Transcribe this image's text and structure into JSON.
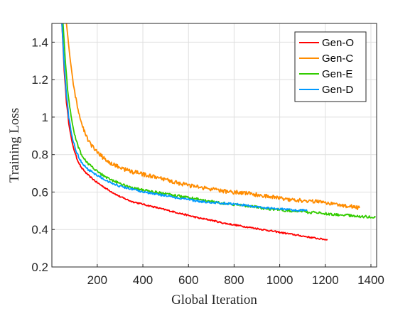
{
  "chart_data": {
    "type": "line",
    "title": "",
    "xlabel": "Global Iteration",
    "ylabel": "Training Loss",
    "xlim": [
      1,
      1425
    ],
    "ylim": [
      0.2,
      1.5
    ],
    "xticks": [
      200,
      400,
      600,
      800,
      1000,
      1200,
      1400
    ],
    "xtick_labels": [
      "200",
      "400",
      "600",
      "800",
      "1000",
      "1200",
      "1400"
    ],
    "yticks": [
      0.2,
      0.4,
      0.6,
      0.8,
      1.0,
      1.2,
      1.4
    ],
    "ytick_labels": [
      "0.2",
      "0.4",
      "0.6",
      "0.8",
      "1",
      "1.2",
      "1.4"
    ],
    "grid": true,
    "legend_position": "top-right",
    "series": [
      {
        "name": "Gen-O",
        "color": "#ff0000",
        "x": [
          45,
          55,
          65,
          75,
          90,
          110,
          130,
          160,
          200,
          250,
          300,
          350,
          400,
          450,
          500,
          550,
          600,
          650,
          700,
          750,
          800,
          850,
          900,
          950,
          1000,
          1050,
          1100,
          1150,
          1210
        ],
        "y": [
          1.5,
          1.25,
          1.08,
          0.97,
          0.86,
          0.78,
          0.73,
          0.69,
          0.65,
          0.61,
          0.575,
          0.55,
          0.535,
          0.52,
          0.505,
          0.49,
          0.475,
          0.46,
          0.45,
          0.435,
          0.425,
          0.415,
          0.405,
          0.395,
          0.385,
          0.375,
          0.365,
          0.355,
          0.345
        ],
        "noise": 0.004
      },
      {
        "name": "Gen-C",
        "color": "#ff8c00",
        "x": [
          65,
          80,
          95,
          110,
          130,
          150,
          175,
          200,
          250,
          300,
          350,
          400,
          450,
          500,
          550,
          600,
          650,
          700,
          750,
          800,
          850,
          900,
          950,
          1000,
          1050,
          1100,
          1150,
          1200,
          1250,
          1300,
          1350
        ],
        "y": [
          1.5,
          1.32,
          1.18,
          1.07,
          0.97,
          0.9,
          0.85,
          0.81,
          0.76,
          0.73,
          0.71,
          0.695,
          0.68,
          0.665,
          0.65,
          0.635,
          0.625,
          0.615,
          0.605,
          0.6,
          0.595,
          0.585,
          0.575,
          0.57,
          0.56,
          0.555,
          0.55,
          0.545,
          0.535,
          0.525,
          0.515
        ],
        "noise": 0.011
      },
      {
        "name": "Gen-E",
        "color": "#33cc00",
        "x": [
          50,
          60,
          70,
          85,
          100,
          120,
          140,
          170,
          200,
          250,
          300,
          350,
          400,
          450,
          500,
          550,
          600,
          650,
          700,
          750,
          800,
          850,
          900,
          950,
          1000,
          1050,
          1100,
          1150,
          1200,
          1250,
          1300,
          1350,
          1420
        ],
        "y": [
          1.5,
          1.3,
          1.15,
          1.0,
          0.91,
          0.83,
          0.78,
          0.74,
          0.71,
          0.67,
          0.645,
          0.625,
          0.61,
          0.6,
          0.59,
          0.58,
          0.57,
          0.56,
          0.55,
          0.54,
          0.535,
          0.525,
          0.52,
          0.51,
          0.505,
          0.5,
          0.495,
          0.49,
          0.485,
          0.48,
          0.475,
          0.47,
          0.465
        ],
        "noise": 0.007
      },
      {
        "name": "Gen-D",
        "color": "#0099ff",
        "x": [
          45,
          55,
          65,
          75,
          90,
          110,
          130,
          160,
          200,
          250,
          300,
          350,
          400,
          450,
          500,
          550,
          600,
          650,
          700,
          750,
          800,
          850,
          900,
          950,
          1000,
          1050,
          1120
        ],
        "y": [
          1.5,
          1.28,
          1.12,
          1.0,
          0.89,
          0.81,
          0.76,
          0.72,
          0.69,
          0.655,
          0.63,
          0.615,
          0.6,
          0.59,
          0.58,
          0.57,
          0.56,
          0.55,
          0.545,
          0.54,
          0.535,
          0.53,
          0.52,
          0.515,
          0.51,
          0.505,
          0.5
        ],
        "noise": 0.006
      }
    ]
  }
}
